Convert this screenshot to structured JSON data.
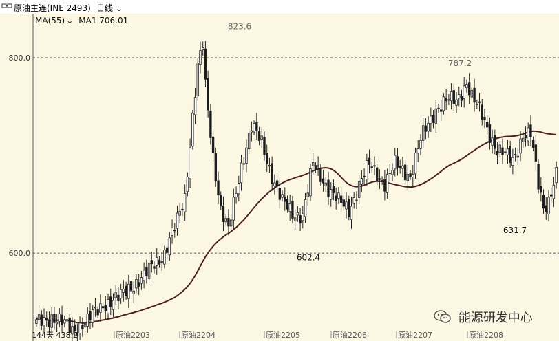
{
  "toolbar": {
    "icon": "compare-icon",
    "title": "原油主连(INE 2493)",
    "period": "日线"
  },
  "legend": {
    "ma_name": "MA(55)",
    "ma_value": "MA1 706.01"
  },
  "watermark": {
    "icon": "wechat-icon",
    "text": "能源研发中心"
  },
  "colors": {
    "background": "#fbf7e3",
    "up_candle": "#ffffff",
    "down_candle": "#1a1a1a",
    "ma_line": "#4a1f1f",
    "grid": "#5a5a5a"
  },
  "chart_data": {
    "type": "candlestick",
    "yticks": [
      "800.0",
      "600.0"
    ],
    "ylim": [
      510,
      845
    ],
    "xticks": [
      "原油2203",
      "原油2204",
      "原油2205",
      "原油2206",
      "原油2207",
      "原油2208"
    ],
    "left_label": "144天 438.2",
    "annotations": [
      "823.6",
      "787.2",
      "602.4",
      "631.7"
    ],
    "extremes": {
      "high": 823.6,
      "period_high": 787.2,
      "low": 602.4,
      "recent_low": 631.7
    },
    "ma_series": {
      "name": "MA(55)",
      "last_value": 706.01
    }
  }
}
